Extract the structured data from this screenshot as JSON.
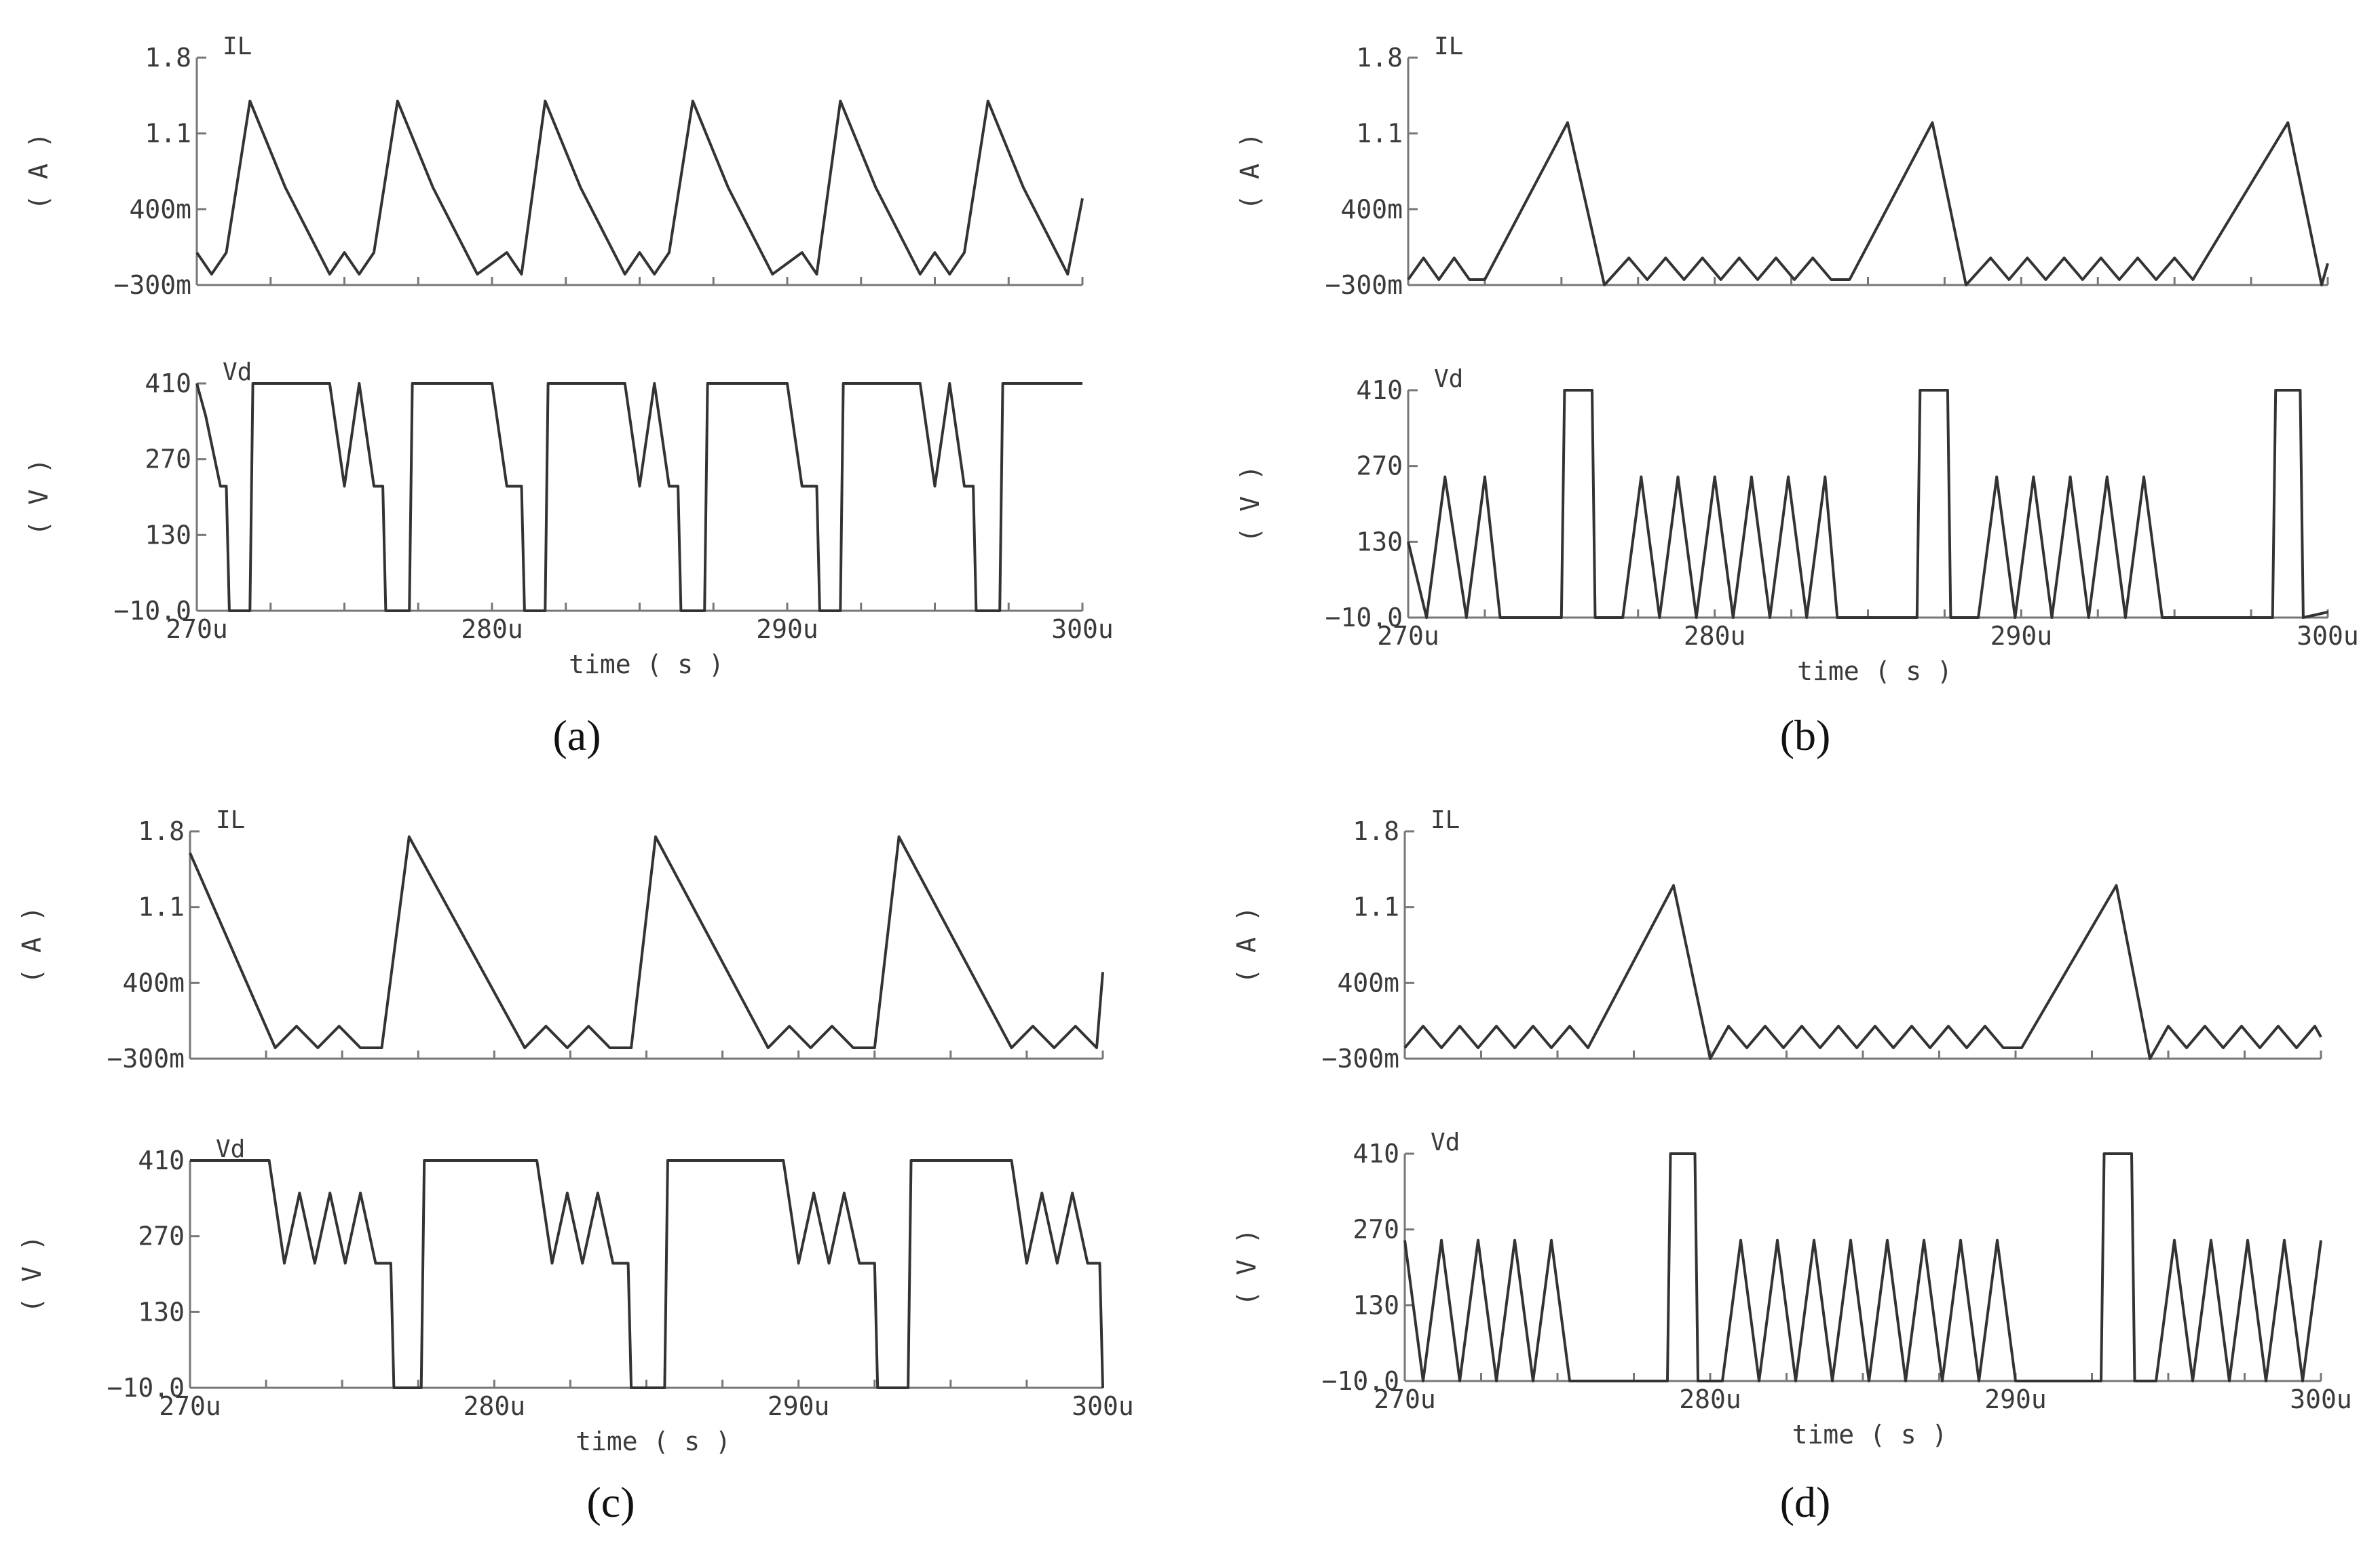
{
  "x_tick_labels": [
    "270u",
    "280u",
    "290u",
    "300u"
  ],
  "x_axis_label": "time ( s )",
  "chart_data": [
    {
      "panel": "(a)",
      "type": "line",
      "xlabel": "time ( s )",
      "xlim": [
        270,
        300
      ],
      "plots": [
        {
          "signal": "IL",
          "unit": "( A )",
          "ylim": [
            -0.3,
            1.8
          ],
          "yticks": [
            "1.8",
            "1.1",
            "400m",
            "-300m"
          ],
          "x": [
            270,
            270.5,
            271,
            271.8,
            273,
            274.5,
            275,
            275.5,
            276,
            276.8,
            278,
            279.5,
            280.5,
            281,
            281.8,
            283,
            284.5,
            285,
            285.5,
            286,
            286.8,
            288,
            289.5,
            290.5,
            291,
            291.8,
            293,
            294.5,
            295,
            295.5,
            296,
            296.8,
            298,
            299.5,
            300
          ],
          "y": [
            0,
            -0.2,
            0,
            1.4,
            0.6,
            -0.2,
            0,
            -0.2,
            0,
            1.4,
            0.6,
            -0.2,
            0,
            -0.2,
            1.4,
            0.6,
            -0.2,
            0,
            -0.2,
            0,
            1.4,
            0.6,
            -0.2,
            0,
            -0.2,
            1.4,
            0.6,
            -0.2,
            0,
            -0.2,
            0,
            1.4,
            0.6,
            -0.2,
            0.5
          ]
        },
        {
          "signal": "Vd",
          "unit": "( V )",
          "ylim": [
            -10,
            410
          ],
          "yticks": [
            "410",
            "270",
            "130",
            "-10.0"
          ],
          "x": [
            270,
            270.3,
            270.8,
            271,
            271.1,
            271.8,
            271.9,
            274.5,
            275,
            275.5,
            276,
            276.3,
            276.4,
            277.2,
            277.3,
            280,
            280.5,
            281,
            281.1,
            281.8,
            281.9,
            284.5,
            285,
            285.5,
            286,
            286.3,
            286.4,
            287.2,
            287.3,
            290,
            290.5,
            291,
            291.1,
            291.8,
            291.9,
            294.5,
            295,
            295.5,
            296,
            296.3,
            296.4,
            297.2,
            297.3,
            300
          ],
          "y": [
            410,
            350,
            220,
            220,
            -10,
            -10,
            410,
            410,
            220,
            410,
            220,
            220,
            -10,
            -10,
            410,
            410,
            220,
            220,
            -10,
            -10,
            410,
            410,
            220,
            410,
            220,
            220,
            -10,
            -10,
            410,
            410,
            220,
            220,
            -10,
            -10,
            410,
            410,
            220,
            410,
            220,
            220,
            -10,
            -10,
            410,
            410
          ]
        }
      ]
    },
    {
      "panel": "(b)",
      "type": "line",
      "xlabel": "time ( s )",
      "xlim": [
        270,
        300
      ],
      "plots": [
        {
          "signal": "IL",
          "unit": "( A )",
          "ylim": [
            -0.3,
            1.8
          ],
          "yticks": [
            "1.8",
            "1.1",
            "400m",
            "-300m"
          ],
          "x": [
            270,
            270.5,
            271,
            271.5,
            272,
            272.5,
            275.2,
            276.4,
            277.2,
            277.8,
            278.4,
            279,
            279.6,
            280.2,
            280.8,
            281.4,
            282,
            282.6,
            283.2,
            283.8,
            284.4,
            287.1,
            288.2,
            289,
            289.6,
            290.2,
            290.8,
            291.4,
            292,
            292.6,
            293.2,
            293.8,
            294.4,
            295,
            295.6,
            298.7,
            299.8,
            300
          ],
          "y": [
            -0.25,
            -0.05,
            -0.25,
            -0.05,
            -0.25,
            -0.25,
            1.2,
            -0.3,
            -0.05,
            -0.25,
            -0.05,
            -0.25,
            -0.05,
            -0.25,
            -0.05,
            -0.25,
            -0.05,
            -0.25,
            -0.05,
            -0.25,
            -0.25,
            1.2,
            -0.3,
            -0.05,
            -0.25,
            -0.05,
            -0.25,
            -0.05,
            -0.25,
            -0.05,
            -0.25,
            -0.05,
            -0.25,
            -0.05,
            -0.25,
            1.2,
            -0.3,
            -0.1
          ]
        },
        {
          "signal": "Vd",
          "unit": "( V )",
          "ylim": [
            -10,
            410
          ],
          "yticks": [
            "410",
            "270",
            "130",
            "-10.0"
          ],
          "x": [
            270,
            270.6,
            271.2,
            271.9,
            272.5,
            273,
            275,
            275.1,
            276,
            276.1,
            277,
            277.6,
            278.2,
            278.8,
            279.4,
            280,
            280.6,
            281.2,
            281.8,
            282.4,
            283,
            283.6,
            284,
            286.6,
            286.7,
            287.6,
            287.7,
            288.6,
            289.2,
            289.8,
            290.4,
            291,
            291.6,
            292.2,
            292.8,
            293.4,
            294,
            294.6,
            295.2,
            298.2,
            298.3,
            299.1,
            299.2,
            300
          ],
          "y": [
            130,
            -10,
            250,
            -10,
            250,
            -10,
            -10,
            410,
            410,
            -10,
            -10,
            250,
            -10,
            250,
            -10,
            250,
            -10,
            250,
            -10,
            250,
            -10,
            250,
            -10,
            -10,
            410,
            410,
            -10,
            -10,
            250,
            -10,
            250,
            -10,
            250,
            -10,
            250,
            -10,
            250,
            -10,
            -10,
            -10,
            410,
            410,
            -10,
            0
          ]
        }
      ]
    },
    {
      "panel": "(c)",
      "type": "line",
      "xlabel": "time ( s )",
      "xlim": [
        270,
        300
      ],
      "plots": [
        {
          "signal": "IL",
          "unit": "( A )",
          "ylim": [
            -0.3,
            1.8
          ],
          "yticks": [
            "1.8",
            "1.1",
            "400m",
            "-300m"
          ],
          "x": [
            270,
            272.8,
            273.5,
            274.2,
            274.9,
            275.6,
            276.3,
            277.2,
            281,
            281.7,
            282.4,
            283.1,
            283.8,
            284.5,
            285.3,
            289,
            289.7,
            290.4,
            291.1,
            291.8,
            292.5,
            293.3,
            297,
            297.7,
            298.4,
            299.1,
            299.8,
            300
          ],
          "y": [
            1.6,
            -0.2,
            0,
            -0.2,
            0,
            -0.2,
            -0.2,
            1.75,
            -0.2,
            0,
            -0.2,
            0,
            -0.2,
            -0.2,
            1.75,
            -0.2,
            0,
            -0.2,
            0,
            -0.2,
            -0.2,
            1.75,
            -0.2,
            0,
            -0.2,
            0,
            -0.2,
            0.5
          ]
        },
        {
          "signal": "Vd",
          "unit": "( V )",
          "ylim": [
            -10,
            410
          ],
          "yticks": [
            "410",
            "270",
            "130",
            "-10.0"
          ],
          "x": [
            270,
            272.6,
            273.1,
            273.6,
            274.1,
            274.6,
            275.1,
            275.6,
            276.1,
            276.6,
            276.7,
            277.6,
            277.7,
            281.4,
            281.9,
            282.4,
            282.9,
            283.4,
            283.9,
            284.4,
            284.5,
            285.6,
            285.7,
            289.5,
            290,
            290.5,
            291,
            291.5,
            292,
            292.5,
            292.6,
            293.6,
            293.7,
            297,
            297.5,
            298,
            298.5,
            299,
            299.5,
            299.9,
            300
          ],
          "y": [
            410,
            410,
            220,
            350,
            220,
            350,
            220,
            350,
            220,
            220,
            -10,
            -10,
            410,
            410,
            220,
            350,
            220,
            350,
            220,
            220,
            -10,
            -10,
            410,
            410,
            220,
            350,
            220,
            350,
            220,
            220,
            -10,
            -10,
            410,
            410,
            220,
            350,
            220,
            350,
            220,
            220,
            -10
          ]
        }
      ]
    },
    {
      "panel": "(d)",
      "type": "line",
      "xlabel": "time ( s )",
      "xlim": [
        270,
        300
      ],
      "plots": [
        {
          "signal": "IL",
          "unit": "( A )",
          "ylim": [
            -0.3,
            1.8
          ],
          "yticks": [
            "1.8",
            "1.1",
            "400m",
            "-300m"
          ],
          "x": [
            270,
            270.6,
            271.2,
            271.8,
            272.4,
            273,
            273.6,
            274.2,
            274.8,
            275.4,
            276,
            278.8,
            280,
            280.6,
            281.2,
            281.8,
            282.4,
            283,
            283.6,
            284.2,
            284.8,
            285.4,
            286,
            286.6,
            287.2,
            287.8,
            288.4,
            289,
            289.6,
            290.2,
            293.3,
            294.4,
            295,
            295.6,
            296.2,
            296.8,
            297.4,
            298,
            298.6,
            299.2,
            299.8,
            300
          ],
          "y": [
            -0.2,
            0,
            -0.2,
            0,
            -0.2,
            0,
            -0.2,
            0,
            -0.2,
            0,
            -0.2,
            1.3,
            -0.3,
            0,
            -0.2,
            0,
            -0.2,
            0,
            -0.2,
            0,
            -0.2,
            0,
            -0.2,
            0,
            -0.2,
            0,
            -0.2,
            0,
            -0.2,
            -0.2,
            1.3,
            -0.3,
            0,
            -0.2,
            0,
            -0.2,
            0,
            -0.2,
            0,
            -0.2,
            0,
            -0.1
          ]
        },
        {
          "signal": "Vd",
          "unit": "( V )",
          "ylim": [
            -10,
            410
          ],
          "yticks": [
            "410",
            "270",
            "130",
            "-10.0"
          ],
          "x": [
            270,
            270.6,
            271.2,
            271.8,
            272.4,
            273,
            273.6,
            274.2,
            274.8,
            275.4,
            276,
            278.6,
            278.7,
            279.5,
            279.6,
            280.4,
            281,
            281.6,
            282.2,
            282.8,
            283.4,
            284,
            284.6,
            285.2,
            285.8,
            286.4,
            287,
            287.6,
            288.2,
            288.8,
            289.4,
            290,
            292.8,
            292.9,
            293.8,
            293.9,
            294.6,
            295.2,
            295.8,
            296.4,
            297,
            297.6,
            298.2,
            298.8,
            299.4,
            300
          ],
          "y": [
            250,
            -10,
            250,
            -10,
            250,
            -10,
            250,
            -10,
            250,
            -10,
            -10,
            -10,
            410,
            410,
            -10,
            -10,
            250,
            -10,
            250,
            -10,
            250,
            -10,
            250,
            -10,
            250,
            -10,
            250,
            -10,
            250,
            -10,
            250,
            -10,
            -10,
            410,
            410,
            -10,
            -10,
            250,
            -10,
            250,
            -10,
            250,
            -10,
            250,
            -10,
            250
          ]
        }
      ]
    }
  ]
}
